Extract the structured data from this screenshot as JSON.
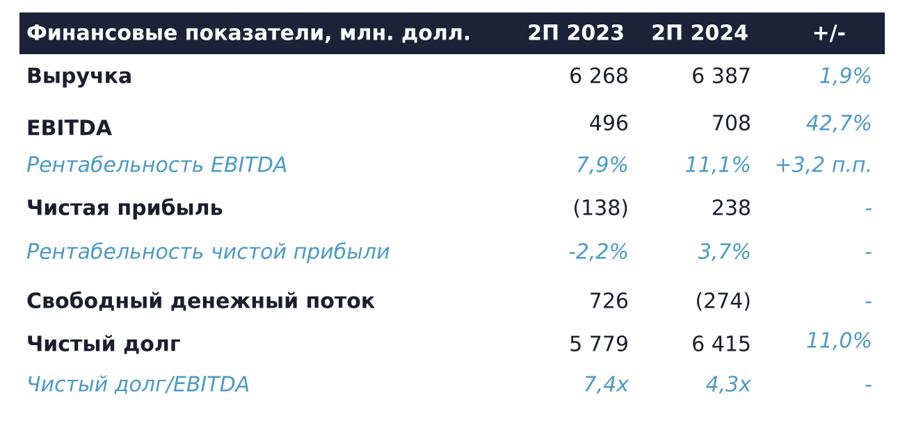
{
  "table": {
    "header": {
      "label": "Финансовые показатели, млн. долл.",
      "col1": "2П 2023",
      "col2": "2П 2024",
      "col3": "+/-"
    },
    "rows": [
      {
        "label": "Выручка",
        "v2023": "6 268",
        "v2024": "6 387",
        "change": "1,9%",
        "style": "bold"
      },
      {
        "label": "EBITDA",
        "v2023": "496",
        "v2024": "708",
        "change": "42,7%",
        "style": "bold"
      },
      {
        "label": "Рентабельность EBITDA",
        "v2023": "7,9%",
        "v2024": "11,1%",
        "change": "+3,2 п.п.",
        "style": "italic"
      },
      {
        "label": "Чистая прибыль",
        "v2023": "(138)",
        "v2024": "238",
        "change": "-",
        "style": "bold"
      },
      {
        "label": "Рентабельность чистой прибыли",
        "v2023": "-2,2%",
        "v2024": "3,7%",
        "change": "-",
        "style": "italic"
      },
      {
        "label": "Свободный денежный поток",
        "v2023": "726",
        "v2024": "(274)",
        "change": "-",
        "style": "bold"
      },
      {
        "label": "Чистый долг",
        "v2023": "5 779",
        "v2024": "6 415",
        "change": "11,0%",
        "style": "bold"
      },
      {
        "label": "Чистый долг/EBITDA",
        "v2023": "7,4x",
        "v2024": "4,3x",
        "change": "-",
        "style": "italic"
      }
    ]
  }
}
